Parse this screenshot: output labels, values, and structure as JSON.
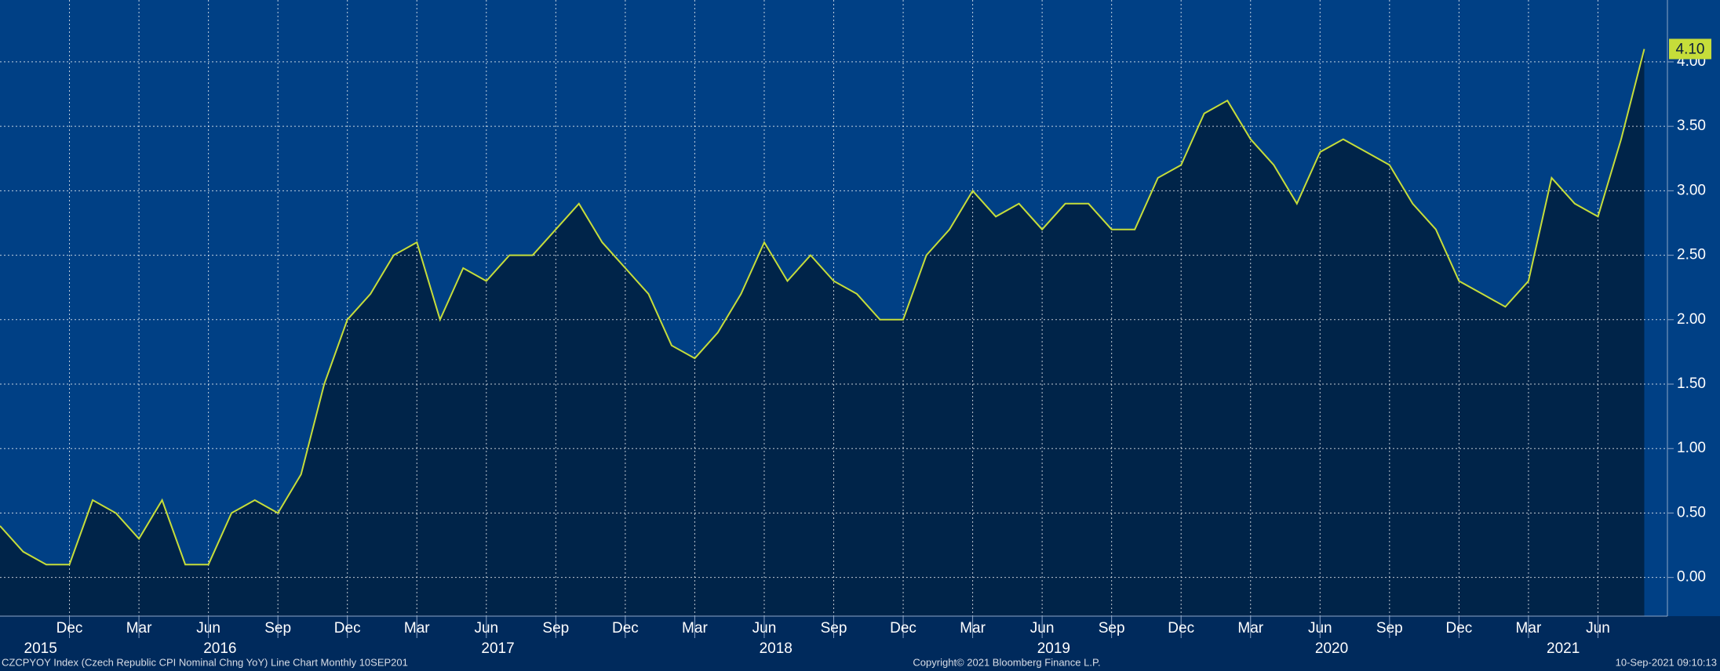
{
  "chart_data": {
    "type": "area-line",
    "x": [
      "2015-09",
      "2015-10",
      "2015-11",
      "2015-12",
      "2016-01",
      "2016-02",
      "2016-03",
      "2016-04",
      "2016-05",
      "2016-06",
      "2016-07",
      "2016-08",
      "2016-09",
      "2016-10",
      "2016-11",
      "2016-12",
      "2017-01",
      "2017-02",
      "2017-03",
      "2017-04",
      "2017-05",
      "2017-06",
      "2017-07",
      "2017-08",
      "2017-09",
      "2017-10",
      "2017-11",
      "2017-12",
      "2018-01",
      "2018-02",
      "2018-03",
      "2018-04",
      "2018-05",
      "2018-06",
      "2018-07",
      "2018-08",
      "2018-09",
      "2018-10",
      "2018-11",
      "2018-12",
      "2019-01",
      "2019-02",
      "2019-03",
      "2019-04",
      "2019-05",
      "2019-06",
      "2019-07",
      "2019-08",
      "2019-09",
      "2019-10",
      "2019-11",
      "2019-12",
      "2020-01",
      "2020-02",
      "2020-03",
      "2020-04",
      "2020-05",
      "2020-06",
      "2020-07",
      "2020-08",
      "2020-09",
      "2020-10",
      "2020-11",
      "2020-12",
      "2021-01",
      "2021-02",
      "2021-03",
      "2021-04",
      "2021-05",
      "2021-06",
      "2021-07",
      "2021-08"
    ],
    "values": [
      0.4,
      0.2,
      0.1,
      0.1,
      0.6,
      0.5,
      0.3,
      0.6,
      0.1,
      0.1,
      0.5,
      0.6,
      0.5,
      0.8,
      1.5,
      2.0,
      2.2,
      2.5,
      2.6,
      2.0,
      2.4,
      2.3,
      2.5,
      2.5,
      2.7,
      2.9,
      2.6,
      2.4,
      2.2,
      1.8,
      1.7,
      1.9,
      2.2,
      2.6,
      2.3,
      2.5,
      2.3,
      2.2,
      2.0,
      2.0,
      2.5,
      2.7,
      3.0,
      2.8,
      2.9,
      2.7,
      2.9,
      2.9,
      2.7,
      2.7,
      3.1,
      3.2,
      3.6,
      3.7,
      3.4,
      3.2,
      2.9,
      3.3,
      3.4,
      3.3,
      3.2,
      2.9,
      2.7,
      2.3,
      2.2,
      2.1,
      2.3,
      3.1,
      2.9,
      2.8,
      3.4,
      4.1
    ],
    "value_labels": [
      null,
      null,
      null,
      null,
      null,
      null,
      null,
      null,
      null,
      null,
      null,
      null,
      null,
      null,
      null,
      null,
      null,
      null,
      null,
      null,
      null,
      null,
      null,
      null,
      null,
      null,
      null,
      null,
      null,
      null,
      null,
      null,
      null,
      null,
      null,
      null,
      null,
      null,
      null,
      null,
      null,
      null,
      null,
      null,
      null,
      null,
      null,
      null,
      null,
      null,
      null,
      null,
      null,
      null,
      null,
      null,
      null,
      null,
      null,
      null,
      null,
      null,
      null,
      null,
      null,
      null,
      null,
      null,
      null,
      null,
      null,
      "4.10"
    ],
    "line_color": "#c6dd3a",
    "area_color": "#002449",
    "background": "#004085",
    "xlim": [
      "2015-09",
      "2021-09"
    ],
    "xticks": [
      {
        "value": "2015-12",
        "label": "Dec"
      },
      {
        "value": "2016-03",
        "label": "Mar"
      },
      {
        "value": "2016-06",
        "label": "Jun"
      },
      {
        "value": "2016-09",
        "label": "Sep"
      },
      {
        "value": "2016-12",
        "label": "Dec"
      },
      {
        "value": "2017-03",
        "label": "Mar"
      },
      {
        "value": "2017-06",
        "label": "Jun"
      },
      {
        "value": "2017-09",
        "label": "Sep"
      },
      {
        "value": "2017-12",
        "label": "Dec"
      },
      {
        "value": "2018-03",
        "label": "Mar"
      },
      {
        "value": "2018-06",
        "label": "Jun"
      },
      {
        "value": "2018-09",
        "label": "Sep"
      },
      {
        "value": "2018-12",
        "label": "Dec"
      },
      {
        "value": "2019-03",
        "label": "Mar"
      },
      {
        "value": "2019-06",
        "label": "Jun"
      },
      {
        "value": "2019-09",
        "label": "Sep"
      },
      {
        "value": "2019-12",
        "label": "Dec"
      },
      {
        "value": "2020-03",
        "label": "Mar"
      },
      {
        "value": "2020-06",
        "label": "Jun"
      },
      {
        "value": "2020-09",
        "label": "Sep"
      },
      {
        "value": "2020-12",
        "label": "Dec"
      },
      {
        "value": "2021-03",
        "label": "Mar"
      },
      {
        "value": "2021-06",
        "label": "Jun"
      }
    ],
    "year_labels": [
      "2015",
      "2016",
      "2017",
      "2018",
      "2019",
      "2020",
      "2021"
    ],
    "ylim": [
      -0.3,
      4.48
    ],
    "yticks": [
      {
        "value": 0,
        "label": "0.00"
      },
      {
        "value": 0.5,
        "label": "0.50"
      },
      {
        "value": 1,
        "label": "1.00"
      },
      {
        "value": 1.5,
        "label": "1.50"
      },
      {
        "value": 2,
        "label": "2.00"
      },
      {
        "value": 2.5,
        "label": "2.50"
      },
      {
        "value": 3,
        "label": "3.00"
      },
      {
        "value": 3.5,
        "label": "3.50"
      },
      {
        "value": 4,
        "label": "4.00"
      }
    ],
    "grid": true,
    "source": "CZCPYOY Index (Czech Republic CPI Nominal Chng YoY) Line Chart  Monthly 10SEP201",
    "copyright": "Copyright© 2021 Bloomberg Finance L.P.",
    "timestamp": "10-Sep-2021 09:10:13"
  }
}
